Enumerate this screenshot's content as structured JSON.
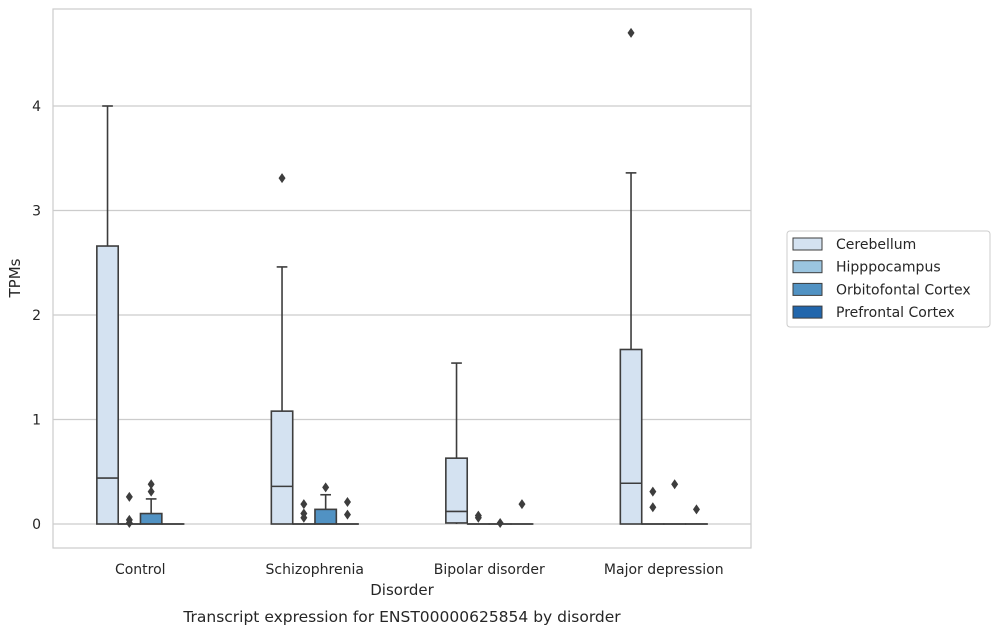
{
  "chart_data": {
    "type": "box",
    "caption": "Transcript expression for ENST00000625854 by disorder",
    "xlabel": "Disorder",
    "ylabel": "TPMs",
    "ylim": [
      -0.23,
      4.9
    ],
    "yticks": [
      0,
      1,
      2,
      3,
      4
    ],
    "grid": "horizontal",
    "legend_position": "right",
    "categories": [
      "Control",
      "Schizophrenia",
      "Bipolar disorder",
      "Major depression"
    ],
    "series": [
      {
        "name": "Cerebellum",
        "color": "#d4e2f1",
        "boxes": [
          {
            "min": 0,
            "q1": 0,
            "median": 0.44,
            "q3": 2.66,
            "max": 4.0,
            "outliers": []
          },
          {
            "min": 0,
            "q1": 0,
            "median": 0.36,
            "q3": 1.08,
            "max": 2.46,
            "outliers": [
              3.31
            ]
          },
          {
            "min": 0,
            "q1": 0.01,
            "median": 0.12,
            "q3": 0.63,
            "max": 1.54,
            "outliers": []
          },
          {
            "min": 0,
            "q1": 0,
            "median": 0.39,
            "q3": 1.67,
            "max": 3.36,
            "outliers": [
              4.7
            ]
          }
        ]
      },
      {
        "name": "Hipppocampus",
        "color": "#9bc5e0",
        "boxes": [
          {
            "min": 0,
            "q1": 0,
            "median": 0,
            "q3": 0,
            "max": 0,
            "outliers": [
              0.26,
              0.04,
              0.01
            ]
          },
          {
            "min": 0,
            "q1": 0,
            "median": 0,
            "q3": 0,
            "max": 0,
            "outliers": [
              0.19,
              0.1,
              0.06
            ]
          },
          {
            "min": 0,
            "q1": 0,
            "median": 0,
            "q3": 0,
            "max": 0,
            "outliers": [
              0.08,
              0.06
            ]
          },
          {
            "min": 0,
            "q1": 0,
            "median": 0,
            "q3": 0,
            "max": 0,
            "outliers": [
              0.31,
              0.16
            ]
          }
        ]
      },
      {
        "name": "Orbitofontal Cortex",
        "color": "#5192c3",
        "boxes": [
          {
            "min": 0,
            "q1": 0,
            "median": 0,
            "q3": 0.1,
            "max": 0.24,
            "outliers": [
              0.38,
              0.31
            ]
          },
          {
            "min": 0,
            "q1": 0,
            "median": 0,
            "q3": 0.14,
            "max": 0.28,
            "outliers": [
              0.35
            ]
          },
          {
            "min": 0,
            "q1": 0,
            "median": 0,
            "q3": 0,
            "max": 0,
            "outliers": [
              0.01
            ]
          },
          {
            "min": 0,
            "q1": 0,
            "median": 0,
            "q3": 0,
            "max": 0,
            "outliers": [
              0.38
            ]
          }
        ]
      },
      {
        "name": "Prefrontal Cortex",
        "color": "#2166ac",
        "boxes": [
          {
            "min": 0,
            "q1": 0,
            "median": 0,
            "q3": 0,
            "max": 0,
            "outliers": []
          },
          {
            "min": 0,
            "q1": 0,
            "median": 0,
            "q3": 0,
            "max": 0,
            "outliers": [
              0.21,
              0.09
            ]
          },
          {
            "min": 0,
            "q1": 0,
            "median": 0,
            "q3": 0,
            "max": 0,
            "outliers": [
              0.19
            ]
          },
          {
            "min": 0,
            "q1": 0,
            "median": 0,
            "q3": 0,
            "max": 0,
            "outliers": [
              0.14
            ]
          }
        ]
      }
    ]
  }
}
